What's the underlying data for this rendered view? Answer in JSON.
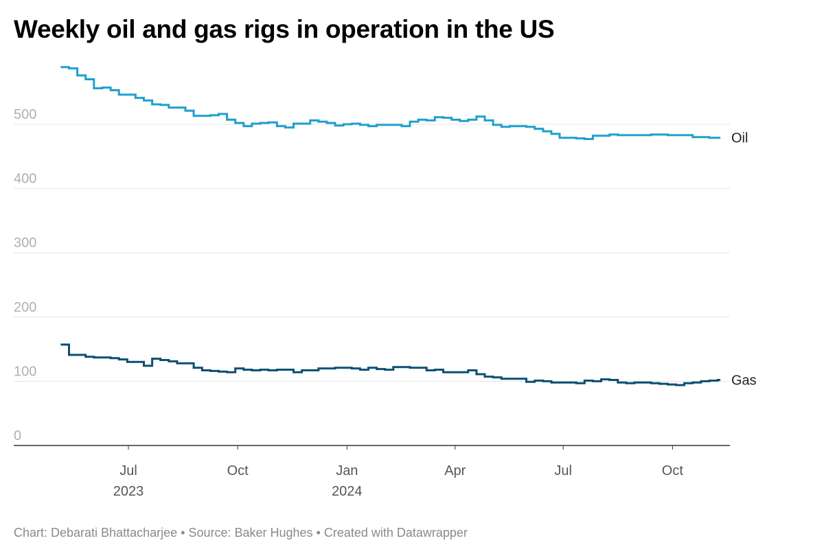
{
  "title": "Weekly oil and gas rigs in operation in the US",
  "footer": "Chart: Debarati Bhattacharjee • Source: Baker Hughes • Created with Datawrapper",
  "chart_data": {
    "type": "line",
    "line_shape": "step",
    "title": "Weekly oil and gas rigs in operation in the US",
    "ylim": [
      0,
      600
    ],
    "yticks": [
      0,
      100,
      200,
      300,
      400,
      500
    ],
    "xticks": [
      {
        "date": "2023-07-01",
        "label": "Jul",
        "sublabel": "2023"
      },
      {
        "date": "2023-10-01",
        "label": "Oct",
        "sublabel": ""
      },
      {
        "date": "2024-01-01",
        "label": "Jan",
        "sublabel": "2024"
      },
      {
        "date": "2024-04-01",
        "label": "Apr",
        "sublabel": ""
      },
      {
        "date": "2024-07-01",
        "label": "Jul",
        "sublabel": ""
      },
      {
        "date": "2024-10-01",
        "label": "Oct",
        "sublabel": ""
      }
    ],
    "grid": true,
    "legend": "direct labels at line ends (right)",
    "x": [
      "2023-05-05",
      "2023-05-12",
      "2023-05-19",
      "2023-05-26",
      "2023-06-02",
      "2023-06-09",
      "2023-06-16",
      "2023-06-23",
      "2023-06-30",
      "2023-07-07",
      "2023-07-14",
      "2023-07-21",
      "2023-07-28",
      "2023-08-04",
      "2023-08-11",
      "2023-08-18",
      "2023-08-25",
      "2023-09-01",
      "2023-09-08",
      "2023-09-15",
      "2023-09-22",
      "2023-09-29",
      "2023-10-06",
      "2023-10-13",
      "2023-10-20",
      "2023-10-27",
      "2023-11-03",
      "2023-11-10",
      "2023-11-17",
      "2023-11-24",
      "2023-12-01",
      "2023-12-08",
      "2023-12-15",
      "2023-12-22",
      "2023-12-29",
      "2024-01-05",
      "2024-01-12",
      "2024-01-19",
      "2024-01-26",
      "2024-02-02",
      "2024-02-09",
      "2024-02-16",
      "2024-02-23",
      "2024-03-01",
      "2024-03-08",
      "2024-03-15",
      "2024-03-22",
      "2024-03-29",
      "2024-04-05",
      "2024-04-12",
      "2024-04-19",
      "2024-04-26",
      "2024-05-03",
      "2024-05-10",
      "2024-05-17",
      "2024-05-24",
      "2024-05-31",
      "2024-06-07",
      "2024-06-14",
      "2024-06-21",
      "2024-06-28",
      "2024-07-05",
      "2024-07-12",
      "2024-07-19",
      "2024-07-26",
      "2024-08-02",
      "2024-08-09",
      "2024-08-16",
      "2024-08-23",
      "2024-08-30",
      "2024-09-06",
      "2024-09-13",
      "2024-09-20",
      "2024-09-27",
      "2024-10-04",
      "2024-10-11",
      "2024-10-18",
      "2024-10-25",
      "2024-11-01",
      "2024-11-08"
    ],
    "series": [
      {
        "name": "Oil",
        "color": "#1f9fcc",
        "values": [
          589,
          587,
          576,
          570,
          556,
          557,
          553,
          546,
          546,
          541,
          537,
          531,
          530,
          526,
          526,
          521,
          513,
          513,
          514,
          516,
          507,
          502,
          497,
          501,
          502,
          503,
          497,
          495,
          501,
          501,
          506,
          504,
          502,
          498,
          500,
          501,
          499,
          497,
          499,
          499,
          499,
          497,
          504,
          507,
          506,
          511,
          510,
          507,
          505,
          507,
          512,
          506,
          499,
          496,
          497,
          497,
          496,
          493,
          489,
          485,
          479,
          479,
          478,
          477,
          482,
          482,
          484,
          483,
          483,
          483,
          483,
          484,
          484,
          483,
          483,
          483,
          480,
          480,
          479,
          479
        ]
      },
      {
        "name": "Gas",
        "color": "#0b4f73",
        "values": [
          157,
          141,
          141,
          138,
          137,
          137,
          136,
          134,
          130,
          130,
          124,
          135,
          133,
          131,
          128,
          128,
          121,
          117,
          116,
          115,
          114,
          120,
          118,
          117,
          118,
          117,
          118,
          118,
          114,
          117,
          117,
          120,
          120,
          121,
          121,
          120,
          118,
          121,
          119,
          118,
          122,
          122,
          121,
          121,
          117,
          118,
          114,
          114,
          114,
          117,
          111,
          107,
          106,
          104,
          104,
          104,
          99,
          101,
          100,
          98,
          98,
          98,
          97,
          101,
          100,
          103,
          102,
          98,
          97,
          98,
          98,
          97,
          96,
          95,
          94,
          97,
          98,
          100,
          101,
          102
        ]
      }
    ]
  }
}
